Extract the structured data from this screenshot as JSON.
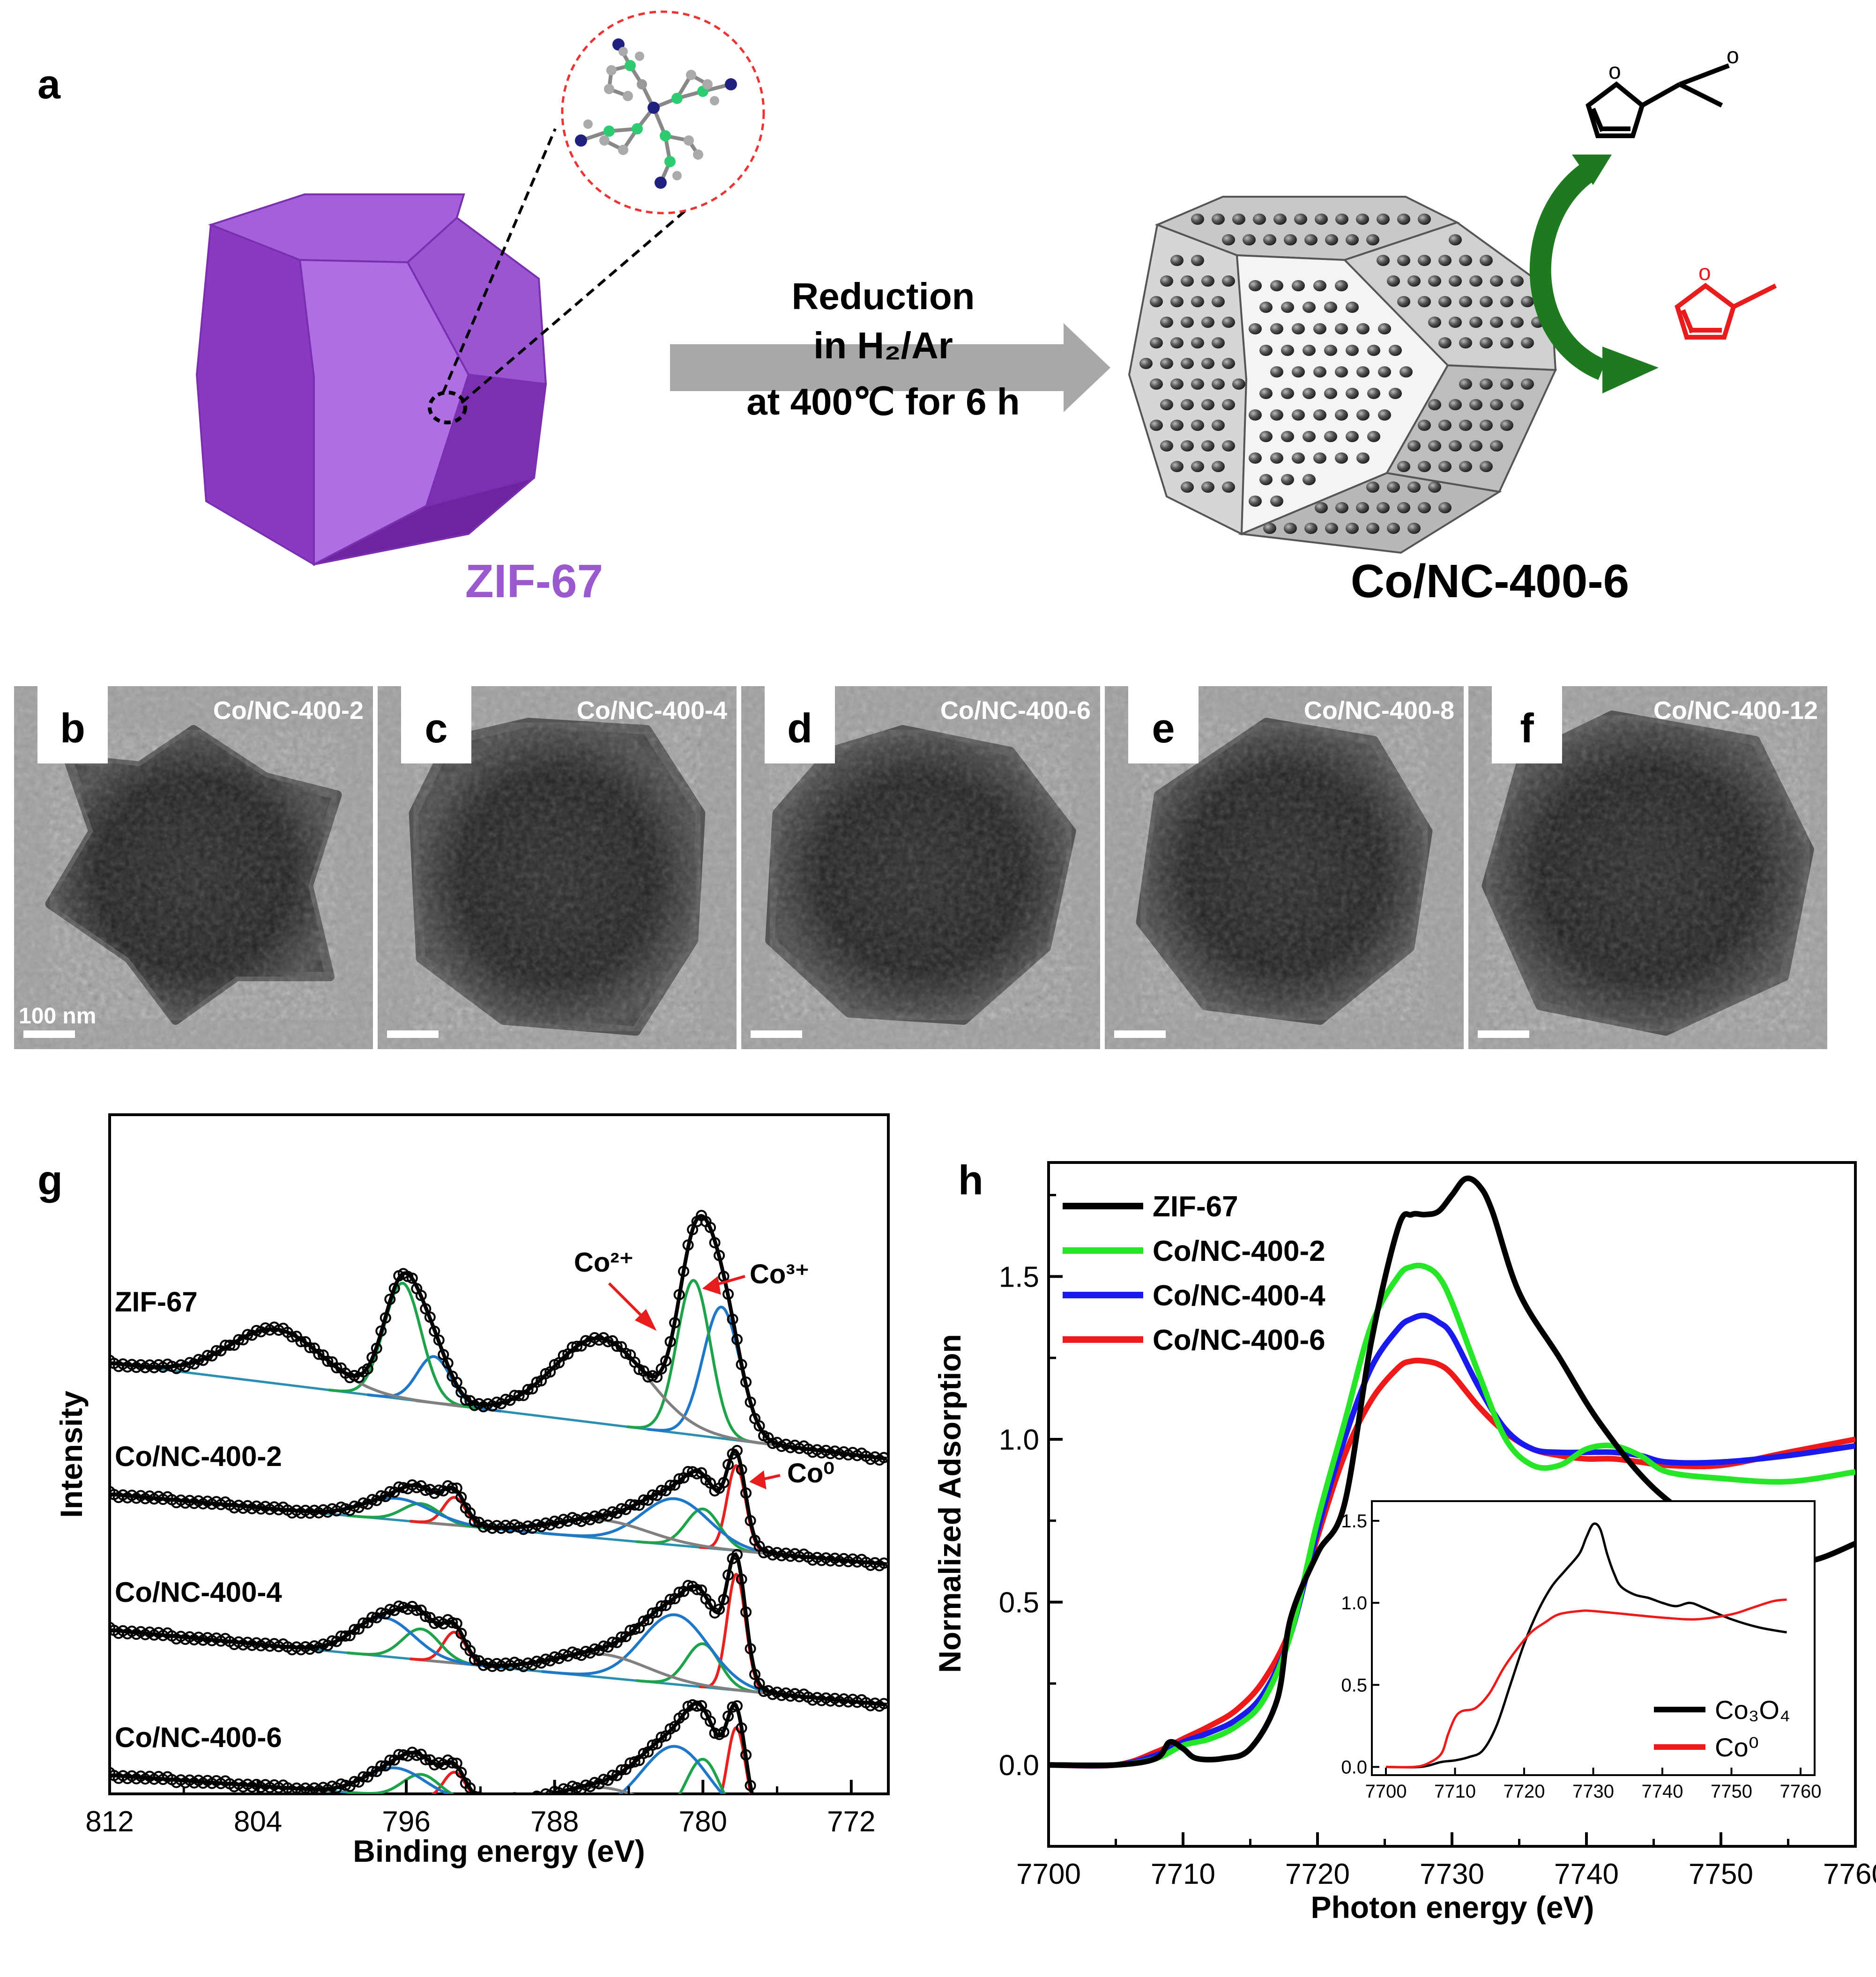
{
  "panel_a": {
    "letter": "a",
    "arrow_line1": "Reduction",
    "arrow_line2": "in H₂/Ar",
    "arrow_line3": "at 400℃ for 6 h",
    "left_label": "ZIF-67",
    "right_label": "Co/NC-400-6",
    "colors": {
      "zif": "#a05ad2",
      "arrow": "#a8a8a8",
      "cycle_arrow": "#1f7a1f",
      "product": "#e81c1c"
    }
  },
  "tem": [
    {
      "letter": "b",
      "label": "Co/NC-400-2",
      "scale": "100 nm"
    },
    {
      "letter": "c",
      "label": "Co/NC-400-4",
      "scale": ""
    },
    {
      "letter": "d",
      "label": "Co/NC-400-6",
      "scale": ""
    },
    {
      "letter": "e",
      "label": "Co/NC-400-8",
      "scale": ""
    },
    {
      "letter": "f",
      "label": "Co/NC-400-12",
      "scale": ""
    }
  ],
  "chart_data": [
    {
      "id": "g",
      "type": "line",
      "letter": "g",
      "xlabel": "Binding energy (eV)",
      "ylabel": "Intensity",
      "xlim": [
        812,
        770
      ],
      "xticks": [
        812,
        804,
        796,
        788,
        780,
        772
      ],
      "labels": {
        "co2": "Co²⁺",
        "co3": "Co³⁺",
        "co0": "Co⁰"
      },
      "colors": {
        "fit_blue": "#1f77c8",
        "fit_green": "#1fa34a",
        "fit_red": "#e8201e",
        "envelope": "#808080",
        "baseline": "#2a8fb0",
        "data": "#000000"
      },
      "series": [
        {
          "name": "ZIF-67",
          "peaks": [
            {
              "c": 779.0,
              "a": 0.85,
              "w": 1.0,
              "color": "blue"
            },
            {
              "c": 780.5,
              "a": 1.0,
              "w": 0.9,
              "color": "green"
            },
            {
              "c": 785.5,
              "a": 0.55,
              "w": 2.5,
              "color": "gray"
            },
            {
              "c": 794.5,
              "a": 0.3,
              "w": 0.9,
              "color": "blue"
            },
            {
              "c": 796.2,
              "a": 0.75,
              "w": 1.0,
              "color": "green"
            },
            {
              "c": 803.0,
              "a": 0.35,
              "w": 2.5,
              "color": "gray"
            }
          ]
        },
        {
          "name": "Co/NC-400-2",
          "peaks": [
            {
              "c": 778.2,
              "a": 0.55,
              "w": 0.5,
              "color": "red"
            },
            {
              "c": 780.0,
              "a": 0.25,
              "w": 0.9,
              "color": "green"
            },
            {
              "c": 781.5,
              "a": 0.3,
              "w": 1.8,
              "color": "blue"
            },
            {
              "c": 785.5,
              "a": 0.12,
              "w": 2.5,
              "color": "gray"
            },
            {
              "c": 793.4,
              "a": 0.18,
              "w": 0.6,
              "color": "red"
            },
            {
              "c": 795.2,
              "a": 0.12,
              "w": 1.0,
              "color": "green"
            },
            {
              "c": 796.5,
              "a": 0.14,
              "w": 1.8,
              "color": "blue"
            }
          ]
        },
        {
          "name": "Co/NC-400-4",
          "peaks": [
            {
              "c": 778.2,
              "a": 0.75,
              "w": 0.5,
              "color": "red"
            },
            {
              "c": 780.0,
              "a": 0.28,
              "w": 0.9,
              "color": "green"
            },
            {
              "c": 781.5,
              "a": 0.45,
              "w": 1.8,
              "color": "blue"
            },
            {
              "c": 785.5,
              "a": 0.15,
              "w": 2.5,
              "color": "gray"
            },
            {
              "c": 793.4,
              "a": 0.2,
              "w": 0.6,
              "color": "red"
            },
            {
              "c": 795.2,
              "a": 0.2,
              "w": 1.0,
              "color": "green"
            },
            {
              "c": 797.2,
              "a": 0.25,
              "w": 1.6,
              "color": "blue"
            }
          ]
        },
        {
          "name": "Co/NC-400-6",
          "peaks": [
            {
              "c": 778.2,
              "a": 0.6,
              "w": 0.5,
              "color": "red"
            },
            {
              "c": 780.0,
              "a": 0.38,
              "w": 0.9,
              "color": "green"
            },
            {
              "c": 781.5,
              "a": 0.45,
              "w": 1.8,
              "color": "blue"
            },
            {
              "c": 785.5,
              "a": 0.15,
              "w": 2.5,
              "color": "gray"
            },
            {
              "c": 793.4,
              "a": 0.18,
              "w": 0.6,
              "color": "red"
            },
            {
              "c": 795.2,
              "a": 0.15,
              "w": 1.0,
              "color": "green"
            },
            {
              "c": 796.6,
              "a": 0.18,
              "w": 1.6,
              "color": "blue"
            }
          ]
        }
      ]
    },
    {
      "id": "h",
      "type": "line",
      "letter": "h",
      "xlabel": "Photon energy (eV)",
      "ylabel": "Normalized Adsorption",
      "xlim": [
        7700,
        7760
      ],
      "ylim": [
        -0.25,
        1.85
      ],
      "xticks": [
        7700,
        7710,
        7720,
        7730,
        7740,
        7750,
        7760
      ],
      "yticks": [
        0.0,
        0.5,
        1.0,
        1.5
      ],
      "legend_position": "top-left",
      "series": [
        {
          "name": "ZIF-67",
          "color": "#000000",
          "x": [
            7700,
            7705,
            7708,
            7709,
            7710,
            7711,
            7713,
            7715,
            7717,
            7718,
            7720,
            7722,
            7724,
            7726,
            7727,
            7728,
            7729,
            7730,
            7731,
            7732,
            7733,
            7735,
            7738,
            7741,
            7745,
            7750,
            7754,
            7757,
            7760
          ],
          "y": [
            0.0,
            0.0,
            0.02,
            0.07,
            0.05,
            0.02,
            0.02,
            0.05,
            0.2,
            0.45,
            0.65,
            0.8,
            1.3,
            1.65,
            1.69,
            1.69,
            1.7,
            1.75,
            1.8,
            1.78,
            1.7,
            1.45,
            1.25,
            1.05,
            0.85,
            0.7,
            0.62,
            0.63,
            0.68
          ]
        },
        {
          "name": "Co/NC-400-2",
          "color": "#27e627",
          "x": [
            7700,
            7705,
            7708,
            7710,
            7712,
            7714,
            7716,
            7718,
            7720,
            7722,
            7724,
            7726,
            7727,
            7728,
            7729,
            7730,
            7732,
            7734,
            7736,
            7738,
            7740,
            7742,
            7744,
            7746,
            7750,
            7755,
            7760
          ],
          "y": [
            0.0,
            0.0,
            0.02,
            0.06,
            0.08,
            0.12,
            0.2,
            0.4,
            0.75,
            1.05,
            1.35,
            1.5,
            1.53,
            1.53,
            1.5,
            1.42,
            1.2,
            1.0,
            0.92,
            0.92,
            0.97,
            0.98,
            0.95,
            0.9,
            0.88,
            0.87,
            0.9
          ]
        },
        {
          "name": "Co/NC-400-4",
          "color": "#1a1aee",
          "x": [
            7700,
            7705,
            7708,
            7710,
            7712,
            7714,
            7716,
            7718,
            7720,
            7722,
            7724,
            7726,
            7727,
            7728,
            7729,
            7730,
            7732,
            7734,
            7736,
            7738,
            7740,
            7742,
            7744,
            7746,
            7750,
            7755,
            7760
          ],
          "y": [
            0.0,
            0.0,
            0.03,
            0.07,
            0.1,
            0.14,
            0.22,
            0.4,
            0.72,
            1.0,
            1.22,
            1.34,
            1.37,
            1.38,
            1.36,
            1.32,
            1.16,
            1.03,
            0.97,
            0.96,
            0.96,
            0.96,
            0.95,
            0.93,
            0.93,
            0.95,
            0.98
          ]
        },
        {
          "name": "Co/NC-400-6",
          "color": "#ee1a1a",
          "x": [
            7700,
            7705,
            7708,
            7710,
            7712,
            7714,
            7716,
            7718,
            7720,
            7722,
            7724,
            7726,
            7727,
            7728,
            7729,
            7730,
            7732,
            7734,
            7736,
            7738,
            7740,
            7742,
            7744,
            7746,
            7750,
            7755,
            7760
          ],
          "y": [
            0.0,
            0.0,
            0.04,
            0.08,
            0.12,
            0.17,
            0.26,
            0.42,
            0.7,
            0.95,
            1.12,
            1.22,
            1.24,
            1.24,
            1.23,
            1.2,
            1.1,
            1.02,
            0.97,
            0.95,
            0.94,
            0.94,
            0.93,
            0.92,
            0.92,
            0.96,
            1.0
          ]
        }
      ],
      "inset": {
        "xlim": [
          7700,
          7760
        ],
        "ylim": [
          -0.05,
          1.62
        ],
        "xticks": [
          7700,
          7710,
          7720,
          7730,
          7740,
          7750,
          7760
        ],
        "yticks": [
          0.0,
          0.5,
          1.0,
          1.5
        ],
        "legend_position": "bottom-right",
        "series": [
          {
            "name": "Co₃O₄",
            "color": "#000000",
            "x": [
              7700,
              7705,
              7708,
              7710,
              7712,
              7714,
              7716,
              7718,
              7720,
              7722,
              7724,
              7726,
              7728,
              7729,
              7730,
              7731,
              7732,
              7733,
              7734,
              7736,
              7738,
              7740,
              7742,
              7744,
              7746,
              7750,
              7754,
              7758
            ],
            "y": [
              0.0,
              0.0,
              0.03,
              0.04,
              0.06,
              0.1,
              0.25,
              0.5,
              0.75,
              0.95,
              1.1,
              1.2,
              1.3,
              1.4,
              1.48,
              1.45,
              1.3,
              1.18,
              1.1,
              1.05,
              1.03,
              1.0,
              0.98,
              1.0,
              0.97,
              0.9,
              0.85,
              0.82
            ]
          },
          {
            "name": "Co⁰",
            "color": "#ee1a1a",
            "x": [
              7700,
              7704,
              7706,
              7708,
              7709,
              7710,
              7711,
              7713,
              7715,
              7717,
              7719,
              7721,
              7723,
              7725,
              7728,
              7730,
              7735,
              7740,
              7745,
              7750,
              7753,
              7756,
              7758
            ],
            "y": [
              0.0,
              0.0,
              0.02,
              0.08,
              0.2,
              0.3,
              0.34,
              0.36,
              0.45,
              0.6,
              0.72,
              0.82,
              0.88,
              0.93,
              0.95,
              0.95,
              0.93,
              0.91,
              0.9,
              0.93,
              0.97,
              1.01,
              1.02
            ]
          }
        ]
      }
    }
  ]
}
